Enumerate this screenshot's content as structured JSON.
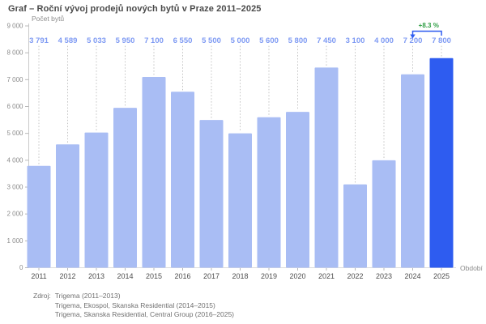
{
  "chart_data": {
    "type": "bar",
    "title": "Graf – Roční vývoj prodejů nových bytů v Praze 2011–2025",
    "categories": [
      "2011",
      "2012",
      "2013",
      "2014",
      "2015",
      "2016",
      "2017",
      "2018",
      "2019",
      "2020",
      "2021",
      "2022",
      "2023",
      "2024",
      "2025"
    ],
    "values": [
      3791,
      4589,
      5033,
      5950,
      7100,
      6550,
      5500,
      5000,
      5600,
      5800,
      7450,
      3100,
      4000,
      7200,
      7800
    ],
    "xlabel": "Období",
    "ylabel": "Počet bytů",
    "ylim": [
      0,
      9000
    ],
    "ytick_step": 1000,
    "grid": false,
    "legend": false,
    "bar_color": "#a9bdf4",
    "highlight_index": 14,
    "highlight_color": "#2e5cf0",
    "value_label_color": "#7e9af3",
    "axis_text_color": "#8c8c8c",
    "x_tick_label_color": "#4d4d4d",
    "annotation": {
      "text": "+8.3 %",
      "from_category": "2024",
      "to_category": "2025",
      "text_color": "#2f9e44",
      "bracket_color": "#2e5cf0"
    }
  },
  "source": {
    "label": "Zdroj:",
    "lines": [
      "Trigema (2011–2013)",
      "Trigema, Ekospol, Skanska Residential (2014–2015)",
      "Trigema, Skanska Residential, Central Group (2016–2025)"
    ]
  }
}
